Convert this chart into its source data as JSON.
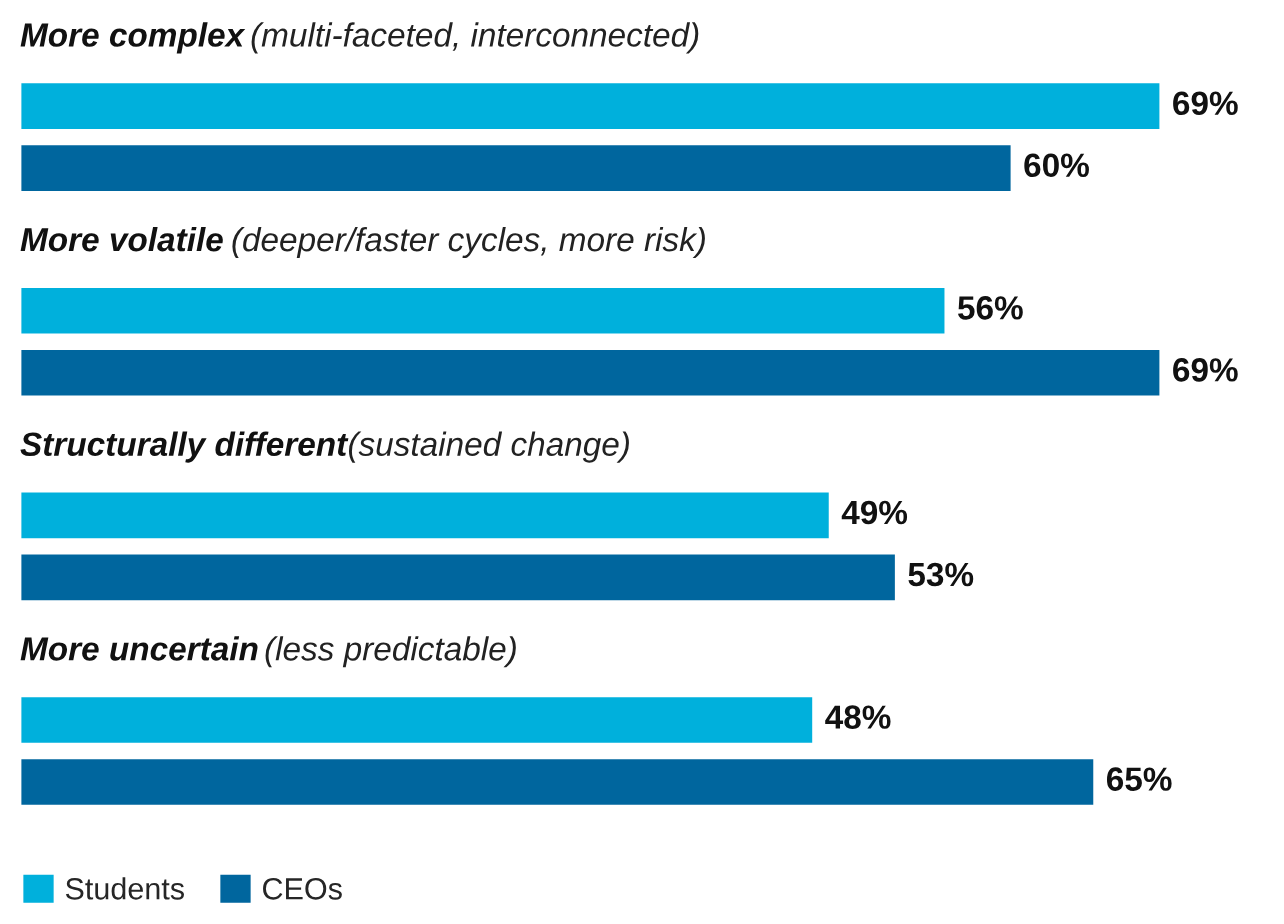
{
  "chart_data": {
    "type": "bar",
    "orientation": "horizontal",
    "categories": [
      "More complex (multi-faceted, interconnected)",
      "More volatile (deeper/faster cycles, more risk)",
      "Structurally different (sustained change)",
      "More uncertain (less predictable)"
    ],
    "series": [
      {
        "name": "Students",
        "color": "#00b0dc",
        "values": [
          69,
          56,
          49,
          48
        ],
        "value_labels": [
          "69%",
          "56%",
          "49%",
          "48%"
        ]
      },
      {
        "name": "CEOs",
        "color": "#00669e",
        "values": [
          60,
          69,
          53,
          65
        ],
        "value_labels": [
          "60%",
          "69%",
          "53%",
          "65%"
        ]
      }
    ],
    "legend": "bottom left"
  }
}
